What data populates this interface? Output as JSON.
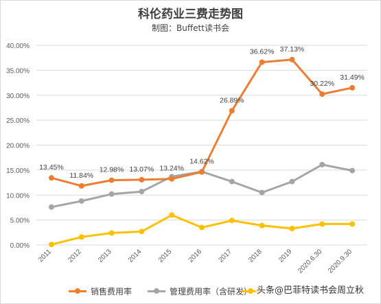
{
  "chart_data": {
    "type": "line",
    "title": "科伦药业三费走势图",
    "subtitle": "制图：Buffett读书会",
    "categories": [
      "2011",
      "2012",
      "2013",
      "2014",
      "2015",
      "2016",
      "2017",
      "2018",
      "2019",
      "2020.6.30",
      "2020.9.30"
    ],
    "yticks": [
      "0.00%",
      "5.00%",
      "10.00%",
      "15.00%",
      "20.00%",
      "25.00%",
      "30.00%",
      "35.00%",
      "40.00%"
    ],
    "ylim": [
      0,
      40
    ],
    "grid": true,
    "legend_position": "bottom",
    "series": [
      {
        "name": "销售费用率",
        "color": "#ED7D31",
        "values": [
          13.45,
          11.84,
          12.98,
          13.07,
          13.24,
          14.62,
          26.89,
          36.62,
          37.13,
          30.22,
          31.49
        ],
        "labels": [
          "13.45%",
          "11.84%",
          "12.98%",
          "13.07%",
          "13.24%",
          "14.62%",
          "26.89%",
          "36.62%",
          "37.13%",
          "30.22%",
          "31.49%"
        ]
      },
      {
        "name": "管理费用率（含研发）",
        "color": "#A5A5A5",
        "values": [
          7.6,
          8.8,
          10.2,
          10.7,
          13.7,
          14.7,
          12.7,
          10.5,
          12.7,
          16.1,
          14.9
        ]
      },
      {
        "name": "财务费用率",
        "color": "#FFC000",
        "values": [
          0.1,
          1.6,
          2.4,
          2.7,
          6.0,
          3.5,
          4.9,
          3.9,
          3.3,
          4.2,
          4.2
        ]
      }
    ]
  },
  "legend": {
    "sales": "销售费用率",
    "admin": "管理费用率（含研发）"
  },
  "watermark": "头条@巴菲特读书会周立秋",
  "colors": {
    "sales": "#ED7D31",
    "admin": "#A5A5A5",
    "finance": "#FFC000"
  }
}
